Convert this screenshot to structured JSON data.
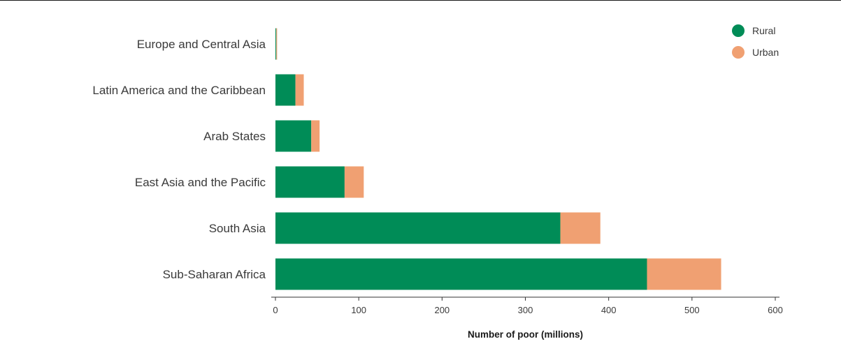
{
  "chart_data": {
    "type": "bar",
    "orientation": "horizontal",
    "stacked": true,
    "categories": [
      "Europe and Central Asia",
      "Latin America and the Caribbean",
      "Arab States",
      "East Asia and the Pacific",
      "South Asia",
      "Sub-Saharan Africa"
    ],
    "series": [
      {
        "name": "Rural",
        "color": "#008c57",
        "values": [
          1,
          24,
          43,
          83,
          342,
          446
        ]
      },
      {
        "name": "Urban",
        "color": "#f0a072",
        "values": [
          1,
          10,
          10,
          23,
          48,
          89
        ]
      }
    ],
    "xlabel": "Number of poor (millions)",
    "ylabel": "",
    "title": "",
    "xlim": [
      0,
      600
    ],
    "xticks": [
      0,
      100,
      200,
      300,
      400,
      500,
      600
    ],
    "grid": false,
    "legend_position": "top-right"
  }
}
